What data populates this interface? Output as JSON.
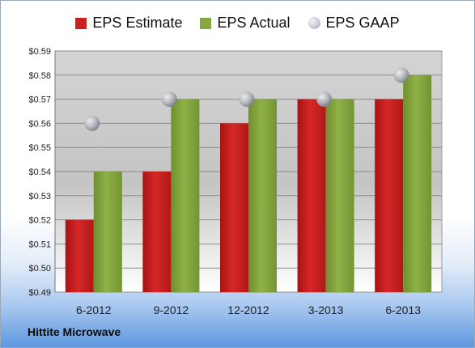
{
  "legend": {
    "estimate_label": "EPS Estimate",
    "actual_label": "EPS Actual",
    "gaap_label": "EPS GAAP"
  },
  "company_label": "Hittite Microwave",
  "colors": {
    "estimate": "#cc1f1f",
    "actual": "#86a83f",
    "gaap": "#b8bec8"
  },
  "chart_data": {
    "type": "bar",
    "categories": [
      "6-2012",
      "9-2012",
      "12-2012",
      "3-2013",
      "6-2013"
    ],
    "series": [
      {
        "name": "EPS Estimate",
        "values": [
          0.52,
          0.54,
          0.56,
          0.57,
          0.57
        ]
      },
      {
        "name": "EPS Actual",
        "values": [
          0.54,
          0.57,
          0.57,
          0.57,
          0.58
        ]
      },
      {
        "name": "EPS GAAP",
        "values": [
          0.56,
          0.57,
          0.57,
          0.57,
          0.58
        ],
        "mark": "bubble"
      }
    ],
    "ylim": [
      0.49,
      0.59
    ],
    "yticks": [
      "$0.49",
      "$0.50",
      "$0.51",
      "$0.52",
      "$0.53",
      "$0.54",
      "$0.55",
      "$0.56",
      "$0.57",
      "$0.58",
      "$0.59"
    ],
    "ytick_values": [
      0.49,
      0.5,
      0.51,
      0.52,
      0.53,
      0.54,
      0.55,
      0.56,
      0.57,
      0.58,
      0.59
    ],
    "grid": true,
    "legend_position": "top"
  }
}
